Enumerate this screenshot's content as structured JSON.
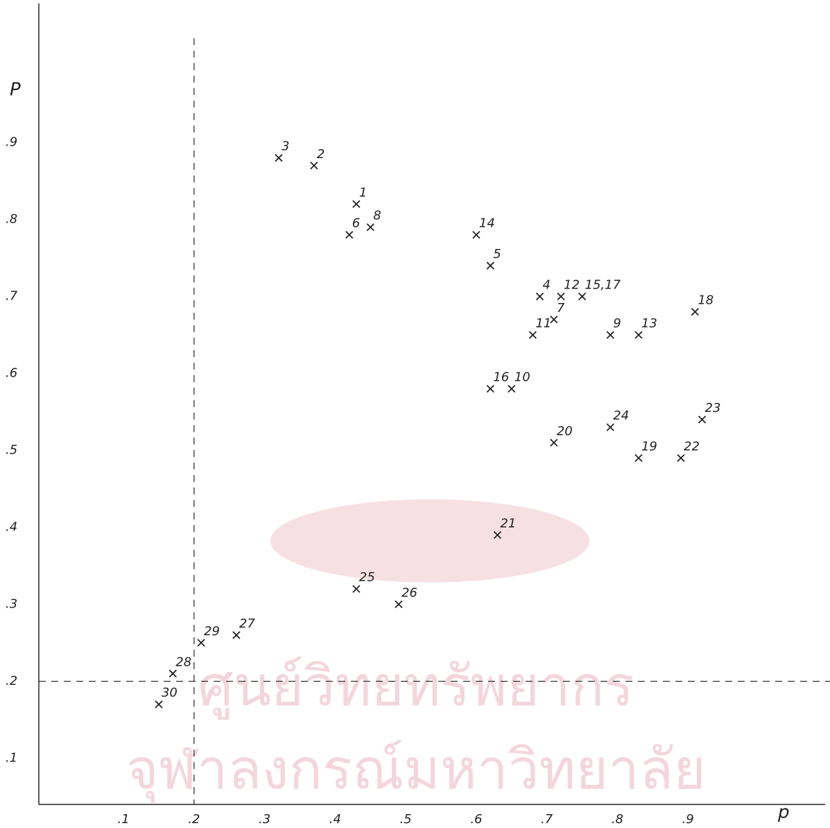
{
  "chart_data": {
    "type": "scatter",
    "x_label": "p",
    "y_label": "P",
    "x": [
      0.43,
      0.37,
      0.32,
      0.69,
      0.62,
      0.42,
      0.71,
      0.45,
      0.79,
      0.65,
      0.68,
      0.72,
      0.83,
      0.6,
      0.75,
      0.62,
      0.91,
      0.83,
      0.71,
      0.63,
      0.89,
      0.92,
      0.79,
      0.43,
      0.49,
      0.26,
      0.17,
      0.21,
      0.15
    ],
    "values": [
      0.82,
      0.87,
      0.88,
      0.7,
      0.74,
      0.78,
      0.67,
      0.79,
      0.65,
      0.58,
      0.65,
      0.7,
      0.65,
      0.78,
      0.7,
      0.58,
      0.68,
      0.49,
      0.51,
      0.39,
      0.49,
      0.54,
      0.53,
      0.32,
      0.3,
      0.26,
      0.21,
      0.25,
      0.17
    ],
    "point_labels": [
      "1",
      "2",
      "3",
      "4",
      "5",
      "6",
      "7",
      "8",
      "9",
      "10",
      "11",
      "12",
      "13",
      "14",
      "15,17",
      "16",
      "18",
      "19",
      "20",
      "21",
      "22",
      "23",
      "24",
      "25",
      "26",
      "27",
      "28",
      "29",
      "30"
    ],
    "color": "#222222",
    "xlim": [
      -0.02,
      1.06
    ],
    "ylim": [
      0.04,
      1.05
    ],
    "xticks": [
      {
        "value": 0.1,
        "label": ".1"
      },
      {
        "value": 0.2,
        "label": ".2"
      },
      {
        "value": 0.3,
        "label": ".3"
      },
      {
        "value": 0.4,
        "label": ".4"
      },
      {
        "value": 0.5,
        "label": ".5"
      },
      {
        "value": 0.6,
        "label": ".6"
      },
      {
        "value": 0.7,
        "label": ".7"
      },
      {
        "value": 0.8,
        "label": ".8"
      },
      {
        "value": 0.9,
        "label": ".9"
      }
    ],
    "yticks": [
      {
        "value": 0.1,
        "label": ".1"
      },
      {
        "value": 0.2,
        "label": ".2"
      },
      {
        "value": 0.3,
        "label": ".3"
      },
      {
        "value": 0.4,
        "label": ".4"
      },
      {
        "value": 0.5,
        "label": ".5"
      },
      {
        "value": 0.6,
        "label": ".6"
      },
      {
        "value": 0.7,
        "label": ".7"
      },
      {
        "value": 0.8,
        "label": ".8"
      },
      {
        "value": 0.9,
        "label": ".9"
      }
    ],
    "reference_lines": {
      "x": 0.2,
      "y": 0.2
    },
    "watermark": [
      "ศูนย์วิทยทรัพยากร",
      "จุฬาลงกรณ์มหาวิทยาลัย"
    ]
  }
}
